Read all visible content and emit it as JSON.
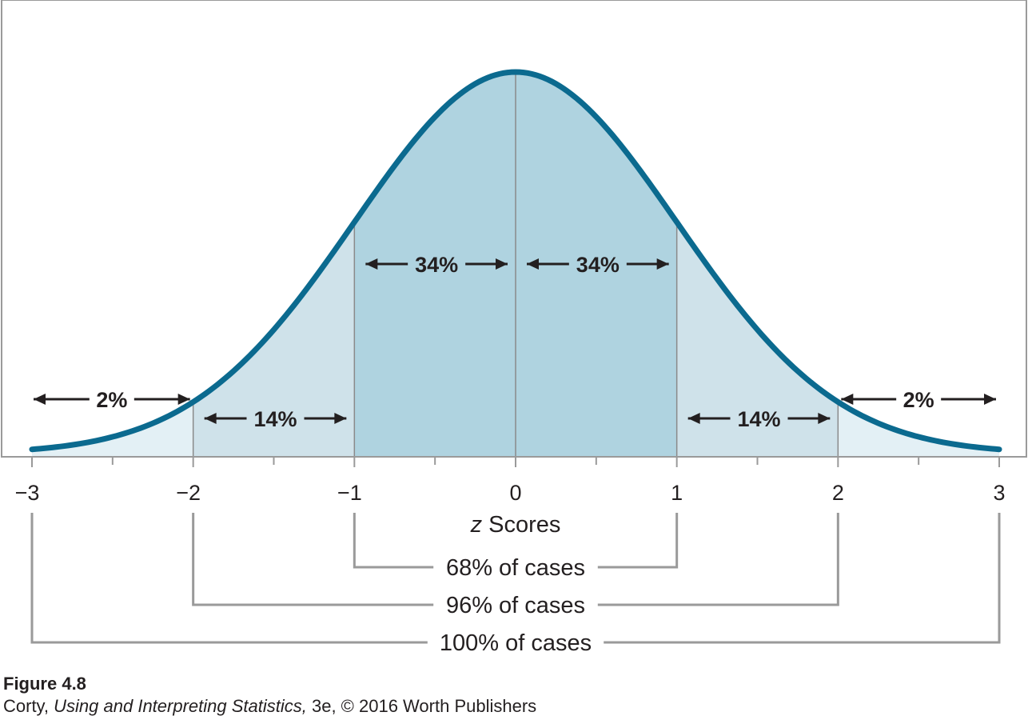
{
  "chart_data": {
    "type": "area",
    "distribution": "normal",
    "x_ticks": [
      "−3",
      "−2",
      "−1",
      "0",
      "1",
      "2",
      "3"
    ],
    "x_range": [
      -3,
      3
    ],
    "xlabel_italic": "z",
    "xlabel_rest": " Scores",
    "regions": [
      {
        "from": -3,
        "to": -2,
        "label": "2%",
        "color": "#e3f0f5"
      },
      {
        "from": -2,
        "to": -1,
        "label": "14%",
        "color": "#cfe2ea"
      },
      {
        "from": -1,
        "to": 0,
        "label": "34%",
        "color": "#afd3e0"
      },
      {
        "from": 0,
        "to": 1,
        "label": "34%",
        "color": "#afd3e0"
      },
      {
        "from": 1,
        "to": 2,
        "label": "14%",
        "color": "#cfe2ea"
      },
      {
        "from": 2,
        "to": 3,
        "label": "2%",
        "color": "#e3f0f5"
      }
    ],
    "spans": [
      {
        "from": -1,
        "to": 1,
        "label": "68% of cases"
      },
      {
        "from": -2,
        "to": 2,
        "label": "96% of cases"
      },
      {
        "from": -3,
        "to": 3,
        "label": "100% of cases"
      }
    ],
    "curve_color": "#0b6a8f"
  },
  "caption": {
    "figure": "Figure 4.8",
    "credit_author": "Corty, ",
    "credit_book": "Using and Interpreting Statistics,",
    "credit_rest": " 3e, © 2016 Worth Publishers"
  }
}
